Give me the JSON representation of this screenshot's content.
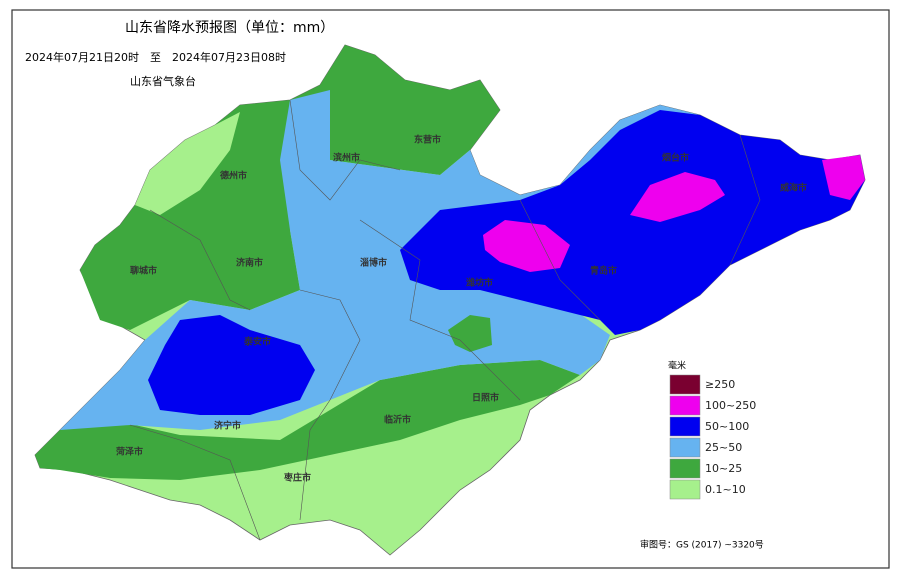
{
  "header": {
    "title": "山东省降水预报图（单位：mm）",
    "subtitle": "2024年07月21日20时　至　2024年07月23日08时",
    "issuer": "山东省气象台"
  },
  "cities": [
    {
      "label": "德州市"
    },
    {
      "label": "滨州市"
    },
    {
      "label": "东营市"
    },
    {
      "label": "聊城市"
    },
    {
      "label": "济南市"
    },
    {
      "label": "淄博市"
    },
    {
      "label": "潍坊市"
    },
    {
      "label": "青岛市"
    },
    {
      "label": "烟台市"
    },
    {
      "label": "威海市"
    },
    {
      "label": "泰安市"
    },
    {
      "label": "济宁市"
    },
    {
      "label": "菏泽市"
    },
    {
      "label": "临沂市"
    },
    {
      "label": "日照市"
    },
    {
      "label": "枣庄市"
    }
  ],
  "legend": {
    "title": "毫米",
    "items": [
      {
        "label": "≥250",
        "color": "#7a0030"
      },
      {
        "label": "100~250",
        "color": "#ee00ee"
      },
      {
        "label": "50~100",
        "color": "#0000f0"
      },
      {
        "label": "25~50",
        "color": "#66b3f0"
      },
      {
        "label": "10~25",
        "color": "#3ea83e"
      },
      {
        "label": "0.1~10",
        "color": "#a6f08c"
      }
    ]
  },
  "footer": "审图号：GS (2017) ~3320号"
}
